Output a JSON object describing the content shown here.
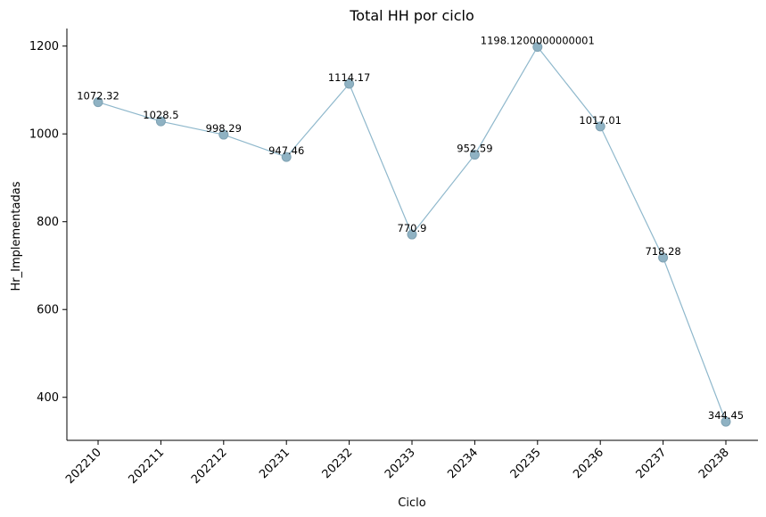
{
  "chart_data": {
    "type": "line",
    "title": "Total HH por ciclo",
    "xlabel": "Ciclo",
    "ylabel": "Hr_Implementadas",
    "categories": [
      "202210",
      "202211",
      "202212",
      "20231",
      "20232",
      "20233",
      "20234",
      "20235",
      "20236",
      "20237",
      "20238"
    ],
    "values": [
      1072.32,
      1028.5,
      998.29,
      947.46,
      1114.17,
      770.9,
      952.59,
      1198.12,
      1017.01,
      718.28,
      344.45
    ],
    "value_labels": [
      "1072.32",
      "1028.5",
      "998.29",
      "947.46",
      "1114.17",
      "770.9",
      "952.59",
      "1198.1200000000001",
      "1017.01",
      "718.28",
      "344.45"
    ],
    "ylim": [
      302,
      1240
    ],
    "yticks": [
      400,
      600,
      800,
      1000,
      1200
    ],
    "grid": false,
    "colors": {
      "line": "#8fb8cc",
      "marker": "#8fb2c3"
    }
  }
}
